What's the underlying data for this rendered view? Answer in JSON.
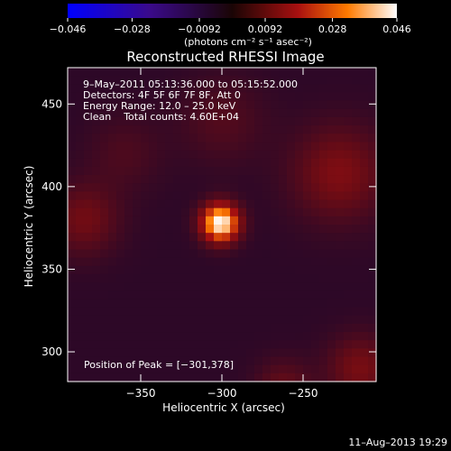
{
  "chart_data": {
    "type": "heatmap",
    "title": "Reconstructed RHESSI Image",
    "xlabel": "Heliocentric X (arcsec)",
    "ylabel": "Heliocentric Y (arcsec)",
    "xlim": [
      -395,
      -205
    ],
    "ylim": [
      282,
      472
    ],
    "x_ticks": [
      -350,
      -300,
      -250
    ],
    "x_tick_labels": [
      "−350",
      "−300",
      "−250"
    ],
    "y_ticks": [
      300,
      350,
      400,
      450
    ],
    "y_tick_labels": [
      "300",
      "350",
      "400",
      "450"
    ],
    "colorbar": {
      "min": -0.046,
      "max": 0.046,
      "ticks": [
        -0.046,
        -0.028,
        -0.0092,
        0.0092,
        0.028,
        0.046
      ],
      "tick_labels": [
        "−0.046",
        "−0.028",
        "−0.0092",
        "0.0092",
        "0.028",
        "0.046"
      ],
      "units": "(photons cm⁻² s⁻¹ asec⁻²)"
    },
    "annotations": {
      "time_range": "9–May–2011 05:13:36.000 to 05:15:52.000",
      "detectors": "Detectors: 4F 5F 6F 7F 8F, Att 0",
      "energy": "Energy Range: 12.0 – 25.0 keV",
      "clean": "Clean    Total counts: 4.60E+04",
      "peak": "Position of Peak = [−301,378]"
    },
    "peak": {
      "x": -301,
      "y": 378,
      "value": 0.046
    },
    "sources": [
      {
        "x": -301,
        "y": 378,
        "amp": 0.046,
        "sigma": 8
      },
      {
        "x": -228,
        "y": 408,
        "amp": 0.013,
        "sigma": 20
      },
      {
        "x": -385,
        "y": 380,
        "amp": 0.011,
        "sigma": 15
      },
      {
        "x": -215,
        "y": 290,
        "amp": 0.012,
        "sigma": 14
      },
      {
        "x": -262,
        "y": 278,
        "amp": 0.009,
        "sigma": 12
      },
      {
        "x": -300,
        "y": 440,
        "amp": 0.006,
        "sigma": 18
      },
      {
        "x": -360,
        "y": 420,
        "amp": 0.005,
        "sigma": 16
      }
    ],
    "background": 0.0005
  },
  "footer": {
    "timestamp": "11–Aug–2013 19:29"
  }
}
